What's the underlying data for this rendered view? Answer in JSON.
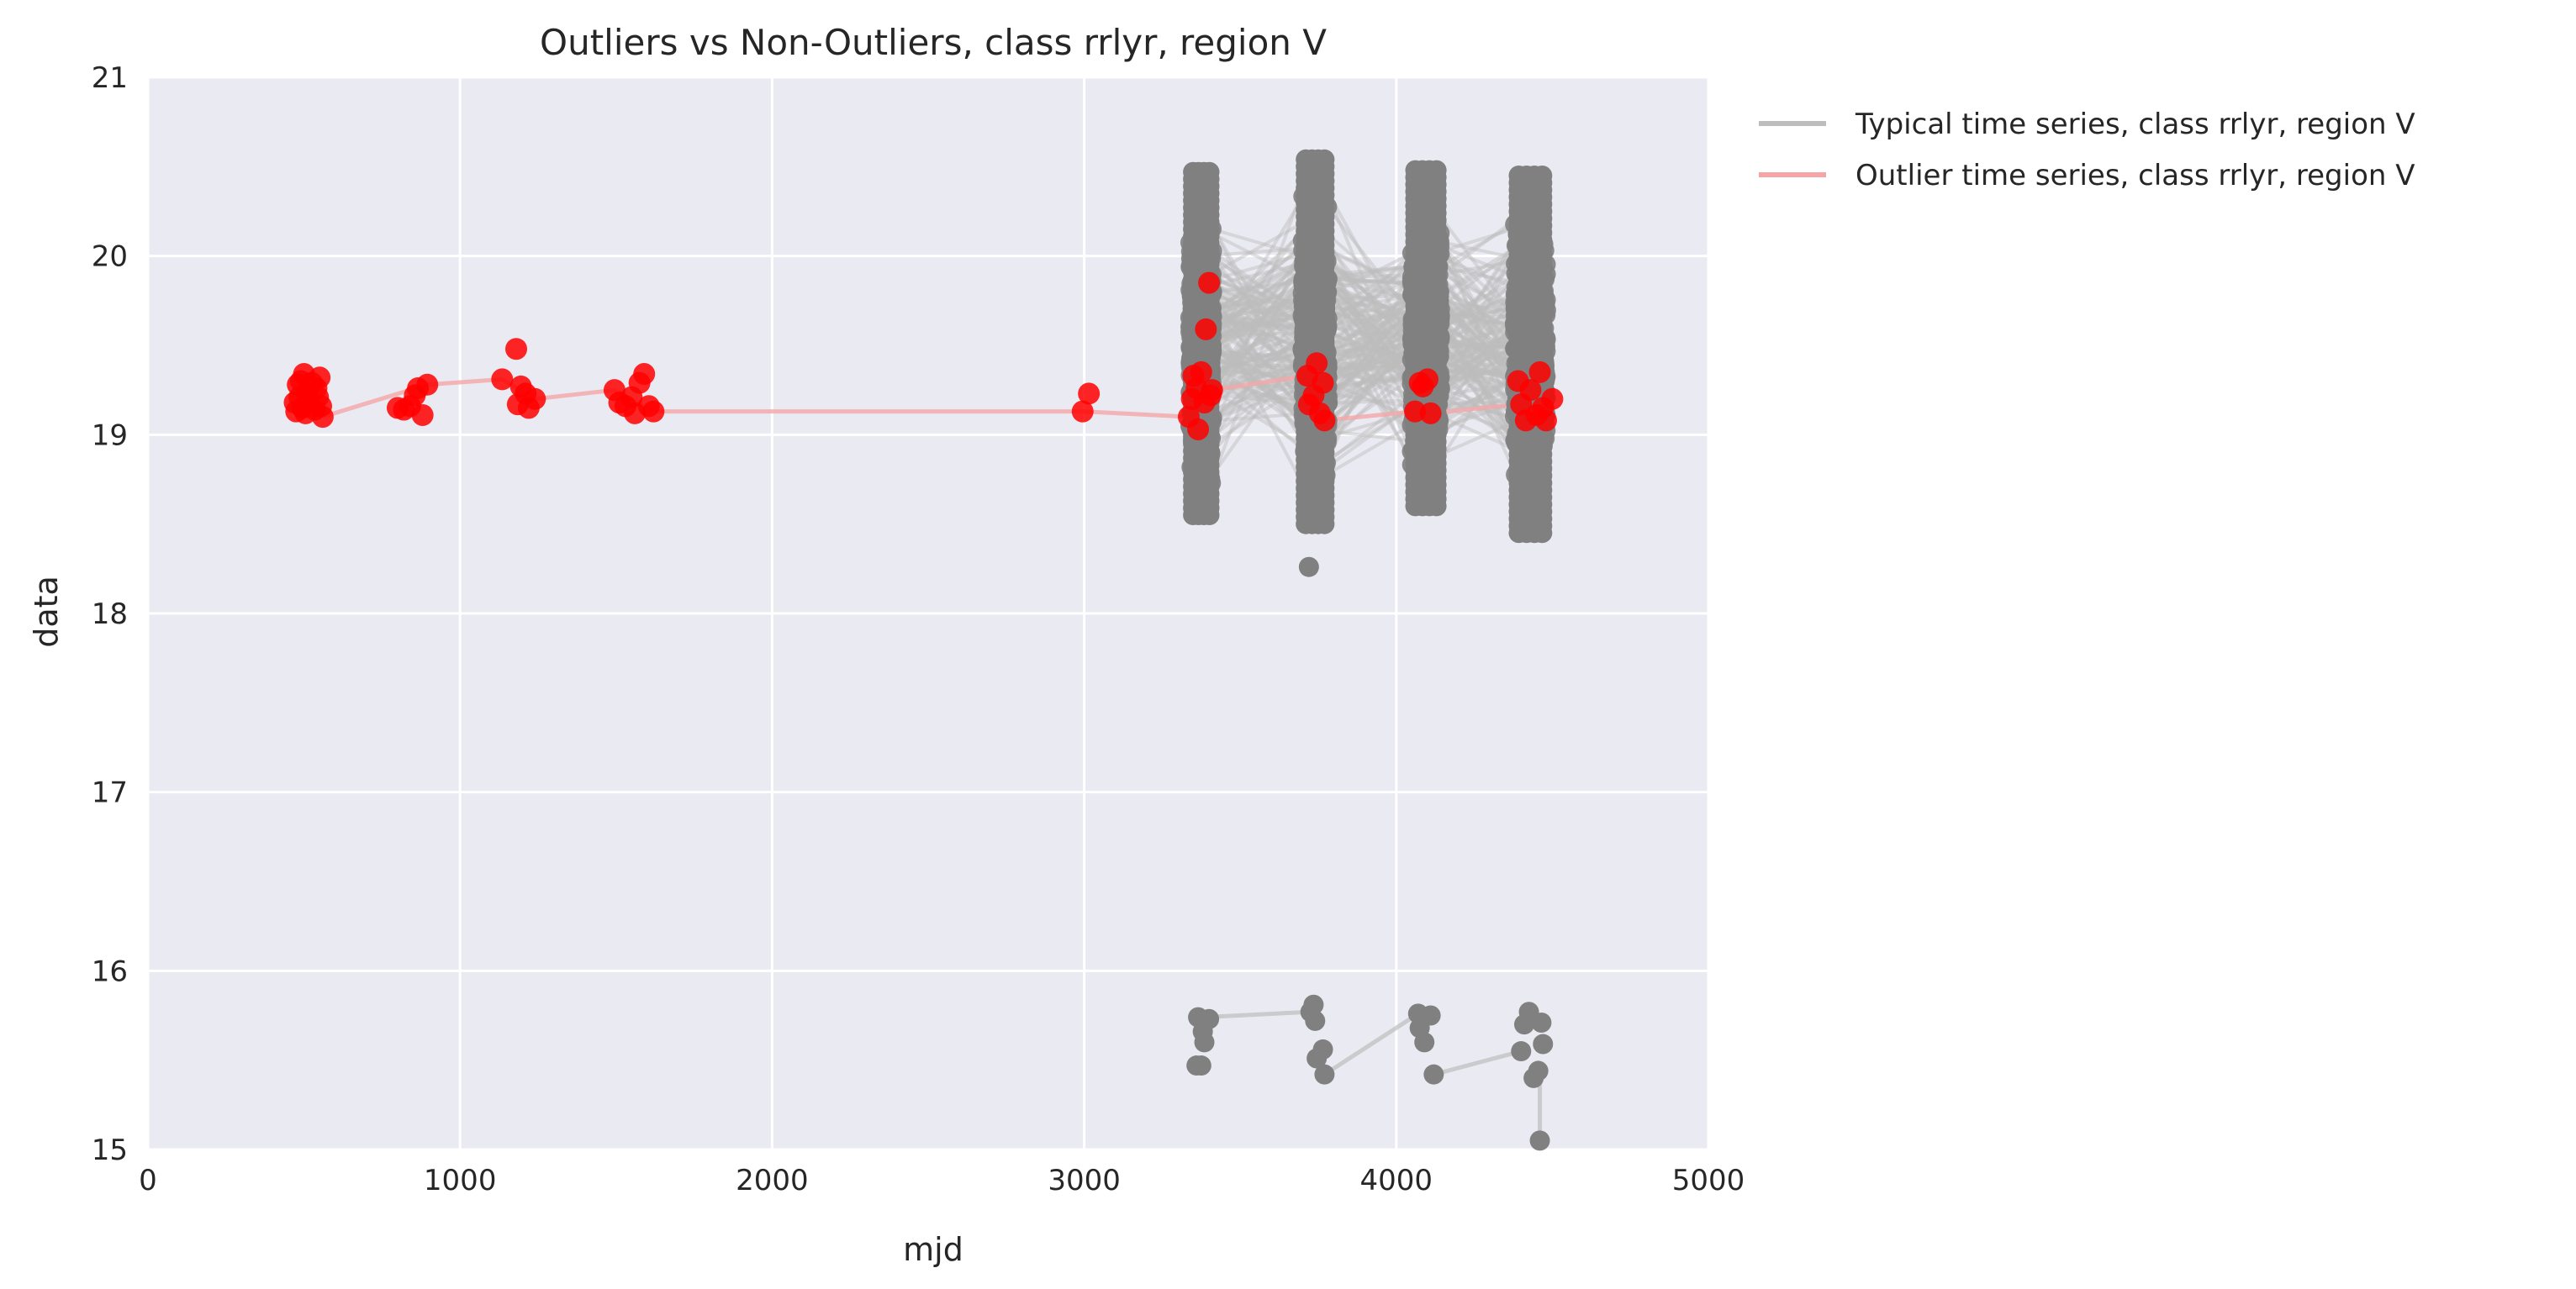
{
  "chart_data": {
    "type": "scatter",
    "title": "Outliers vs Non-Outliers, class rrlyr, region V",
    "xlabel": "mjd",
    "ylabel": "data",
    "xlim": [
      0,
      5000
    ],
    "ylim": [
      15,
      21
    ],
    "xticks": [
      0,
      1000,
      2000,
      3000,
      4000,
      5000
    ],
    "yticks": [
      15,
      16,
      17,
      18,
      19,
      20,
      21
    ],
    "xtick_labels": [
      "0",
      "1000",
      "2000",
      "3000",
      "4000",
      "5000"
    ],
    "ytick_labels": [
      "15",
      "16",
      "17",
      "18",
      "19",
      "20",
      "21"
    ],
    "grid": true,
    "background": "#eaeaf2",
    "legend_position": "outside-right",
    "legend": [
      {
        "label": "Typical time series, class rrlyr, region V",
        "color": "#bdbdbd"
      },
      {
        "label": "Outlier time series, class rrlyr, region V",
        "color": "#f4a6a6"
      }
    ],
    "series": [
      {
        "name": "Typical time series, class rrlyr, region V",
        "color": "#808080",
        "line_color": "#bdbdbd",
        "clusters": [
          {
            "x_range": [
              3340,
              3410
            ],
            "y_range": [
              18.55,
              20.48
            ]
          },
          {
            "x_range": [
              3700,
              3780
            ],
            "y_range": [
              18.5,
              20.55
            ]
          },
          {
            "x_range": [
              4050,
              4140
            ],
            "y_range": [
              18.6,
              20.51
            ]
          },
          {
            "x_range": [
              4380,
              4480
            ],
            "y_range": [
              18.45,
              20.45
            ]
          }
        ],
        "points": [
          {
            "x": 3720,
            "y": 18.26
          },
          {
            "x": 3365,
            "y": 15.74
          },
          {
            "x": 3380,
            "y": 15.66
          },
          {
            "x": 3385,
            "y": 15.6
          },
          {
            "x": 3360,
            "y": 15.47
          },
          {
            "x": 3375,
            "y": 15.47
          },
          {
            "x": 3400,
            "y": 15.73
          },
          {
            "x": 3725,
            "y": 15.77
          },
          {
            "x": 3735,
            "y": 15.81
          },
          {
            "x": 3740,
            "y": 15.72
          },
          {
            "x": 3745,
            "y": 15.51
          },
          {
            "x": 3765,
            "y": 15.56
          },
          {
            "x": 3770,
            "y": 15.42
          },
          {
            "x": 4070,
            "y": 15.76
          },
          {
            "x": 4075,
            "y": 15.68
          },
          {
            "x": 4090,
            "y": 15.6
          },
          {
            "x": 4110,
            "y": 15.75
          },
          {
            "x": 4120,
            "y": 15.42
          },
          {
            "x": 4400,
            "y": 15.55
          },
          {
            "x": 4410,
            "y": 15.7
          },
          {
            "x": 4425,
            "y": 15.77
          },
          {
            "x": 4440,
            "y": 15.4
          },
          {
            "x": 4455,
            "y": 15.44
          },
          {
            "x": 4465,
            "y": 15.71
          },
          {
            "x": 4470,
            "y": 15.59
          },
          {
            "x": 4460,
            "y": 15.05
          }
        ],
        "line_segments": [
          [
            [
              3380,
              15.74
            ],
            [
              3720,
              15.77
            ]
          ],
          [
            [
              3770,
              15.42
            ],
            [
              4070,
              15.76
            ]
          ],
          [
            [
              4120,
              15.42
            ],
            [
              4400,
              15.55
            ]
          ],
          [
            [
              4460,
              15.44
            ],
            [
              4460,
              15.05
            ]
          ]
        ]
      },
      {
        "name": "Outlier time series, class rrlyr, region V",
        "color": "#ff0000",
        "line_color": "#f4a6a6",
        "points": [
          {
            "x": 470,
            "y": 19.18
          },
          {
            "x": 475,
            "y": 19.13
          },
          {
            "x": 480,
            "y": 19.28
          },
          {
            "x": 485,
            "y": 19.21
          },
          {
            "x": 490,
            "y": 19.3
          },
          {
            "x": 495,
            "y": 19.15
          },
          {
            "x": 500,
            "y": 19.34
          },
          {
            "x": 505,
            "y": 19.12
          },
          {
            "x": 510,
            "y": 19.24
          },
          {
            "x": 520,
            "y": 19.18
          },
          {
            "x": 525,
            "y": 19.29
          },
          {
            "x": 535,
            "y": 19.14
          },
          {
            "x": 540,
            "y": 19.26
          },
          {
            "x": 545,
            "y": 19.21
          },
          {
            "x": 550,
            "y": 19.32
          },
          {
            "x": 555,
            "y": 19.16
          },
          {
            "x": 560,
            "y": 19.1
          },
          {
            "x": 800,
            "y": 19.15
          },
          {
            "x": 820,
            "y": 19.14
          },
          {
            "x": 840,
            "y": 19.16
          },
          {
            "x": 855,
            "y": 19.22
          },
          {
            "x": 865,
            "y": 19.26
          },
          {
            "x": 880,
            "y": 19.11
          },
          {
            "x": 895,
            "y": 19.28
          },
          {
            "x": 1135,
            "y": 19.31
          },
          {
            "x": 1180,
            "y": 19.48
          },
          {
            "x": 1185,
            "y": 19.17
          },
          {
            "x": 1195,
            "y": 19.27
          },
          {
            "x": 1210,
            "y": 19.23
          },
          {
            "x": 1220,
            "y": 19.15
          },
          {
            "x": 1240,
            "y": 19.2
          },
          {
            "x": 1495,
            "y": 19.25
          },
          {
            "x": 1510,
            "y": 19.18
          },
          {
            "x": 1530,
            "y": 19.16
          },
          {
            "x": 1550,
            "y": 19.21
          },
          {
            "x": 1560,
            "y": 19.12
          },
          {
            "x": 1575,
            "y": 19.29
          },
          {
            "x": 1590,
            "y": 19.34
          },
          {
            "x": 1605,
            "y": 19.16
          },
          {
            "x": 1620,
            "y": 19.13
          },
          {
            "x": 2995,
            "y": 19.13
          },
          {
            "x": 3015,
            "y": 19.23
          },
          {
            "x": 3335,
            "y": 19.1
          },
          {
            "x": 3345,
            "y": 19.2
          },
          {
            "x": 3350,
            "y": 19.33
          },
          {
            "x": 3360,
            "y": 19.26
          },
          {
            "x": 3365,
            "y": 19.03
          },
          {
            "x": 3375,
            "y": 19.35
          },
          {
            "x": 3385,
            "y": 19.18
          },
          {
            "x": 3390,
            "y": 19.59
          },
          {
            "x": 3400,
            "y": 19.85
          },
          {
            "x": 3405,
            "y": 19.22
          },
          {
            "x": 3410,
            "y": 19.25
          },
          {
            "x": 3715,
            "y": 19.33
          },
          {
            "x": 3720,
            "y": 19.17
          },
          {
            "x": 3735,
            "y": 19.22
          },
          {
            "x": 3745,
            "y": 19.4
          },
          {
            "x": 3755,
            "y": 19.12
          },
          {
            "x": 3765,
            "y": 19.29
          },
          {
            "x": 3770,
            "y": 19.08
          },
          {
            "x": 4060,
            "y": 19.13
          },
          {
            "x": 4075,
            "y": 19.29
          },
          {
            "x": 4085,
            "y": 19.27
          },
          {
            "x": 4100,
            "y": 19.31
          },
          {
            "x": 4110,
            "y": 19.12
          },
          {
            "x": 4390,
            "y": 19.3
          },
          {
            "x": 4400,
            "y": 19.17
          },
          {
            "x": 4415,
            "y": 19.08
          },
          {
            "x": 4430,
            "y": 19.25
          },
          {
            "x": 4450,
            "y": 19.11
          },
          {
            "x": 4460,
            "y": 19.35
          },
          {
            "x": 4470,
            "y": 19.15
          },
          {
            "x": 4480,
            "y": 19.08
          },
          {
            "x": 4500,
            "y": 19.2
          }
        ],
        "line_path": [
          [
            560,
            19.1
          ],
          [
            895,
            19.28
          ],
          [
            1135,
            19.31
          ],
          [
            1240,
            19.2
          ],
          [
            1495,
            19.25
          ],
          [
            1620,
            19.13
          ],
          [
            2995,
            19.13
          ],
          [
            3335,
            19.1
          ],
          [
            3410,
            19.25
          ],
          [
            3715,
            19.33
          ],
          [
            3770,
            19.08
          ],
          [
            4060,
            19.13
          ],
          [
            4110,
            19.12
          ],
          [
            4390,
            19.17
          ],
          [
            4500,
            19.2
          ]
        ]
      }
    ]
  }
}
